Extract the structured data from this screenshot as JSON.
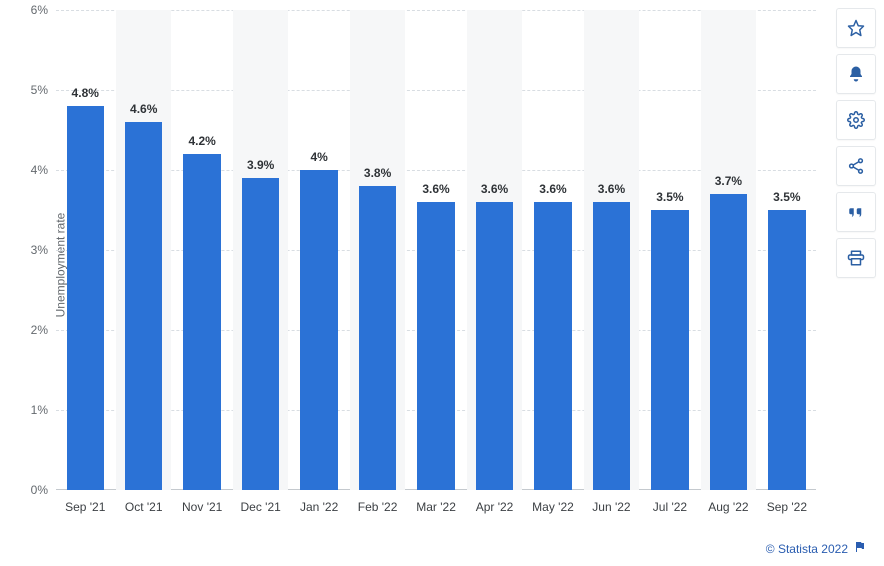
{
  "chart": {
    "type": "bar",
    "ylabel": "Unemployment rate",
    "ylim": [
      0,
      6
    ],
    "ytick_step": 1,
    "ytick_suffix": "%",
    "ytick_labels": [
      "0%",
      "1%",
      "2%",
      "3%",
      "4%",
      "5%",
      "6%"
    ],
    "categories": [
      "Sep '21",
      "Oct '21",
      "Nov '21",
      "Dec '21",
      "Jan '22",
      "Feb '22",
      "Mar '22",
      "Apr '22",
      "May '22",
      "Jun '22",
      "Jul '22",
      "Aug '22",
      "Sep '22"
    ],
    "values": [
      4.8,
      4.6,
      4.2,
      3.9,
      4.0,
      3.8,
      3.6,
      3.6,
      3.6,
      3.6,
      3.5,
      3.7,
      3.5
    ],
    "data_labels": [
      "4.8%",
      "4.6%",
      "4.2%",
      "3.9%",
      "4%",
      "3.8%",
      "3.6%",
      "3.6%",
      "3.6%",
      "3.6%",
      "3.5%",
      "3.7%",
      "3.5%"
    ],
    "bar_color": "#2b72d6",
    "slot_bg_alt": "#f6f7f8",
    "grid_color": "#d8dde2",
    "background_color": "#ffffff",
    "datalabel_fontsize": 12,
    "axis_fontsize": 12
  },
  "toolbar": {
    "icons": [
      {
        "name": "star-icon"
      },
      {
        "name": "bell-icon"
      },
      {
        "name": "gear-icon"
      },
      {
        "name": "share-icon"
      },
      {
        "name": "quote-icon"
      },
      {
        "name": "print-icon"
      }
    ],
    "icon_color": "#2b5fa3"
  },
  "attribution": {
    "text": "© Statista 2022",
    "link_color": "#2a5db0"
  }
}
